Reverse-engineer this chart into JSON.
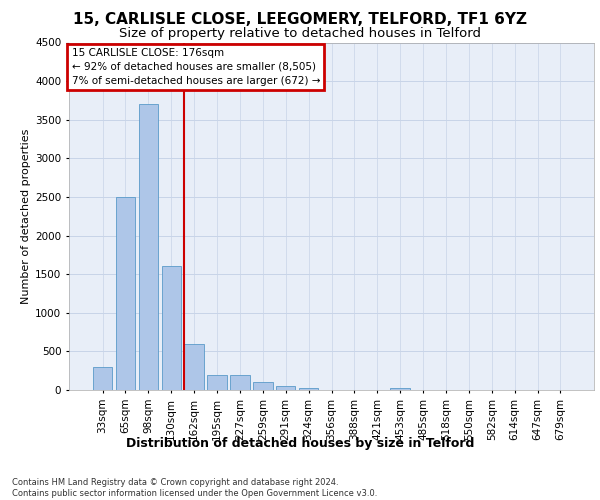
{
  "title1": "15, CARLISLE CLOSE, LEEGOMERY, TELFORD, TF1 6YZ",
  "title2": "Size of property relative to detached houses in Telford",
  "xlabel": "Distribution of detached houses by size in Telford",
  "ylabel": "Number of detached properties",
  "categories": [
    "33sqm",
    "65sqm",
    "98sqm",
    "130sqm",
    "162sqm",
    "195sqm",
    "227sqm",
    "259sqm",
    "291sqm",
    "324sqm",
    "356sqm",
    "388sqm",
    "421sqm",
    "453sqm",
    "485sqm",
    "518sqm",
    "550sqm",
    "582sqm",
    "614sqm",
    "647sqm",
    "679sqm"
  ],
  "values": [
    300,
    2500,
    3700,
    1600,
    600,
    200,
    200,
    100,
    50,
    20,
    5,
    0,
    0,
    30,
    0,
    0,
    0,
    0,
    0,
    0,
    0
  ],
  "bar_color": "#aec6e8",
  "bar_edge_color": "#5a9ac9",
  "grid_color": "#c8d4e8",
  "bg_color": "#e8eef8",
  "annotation_text": "15 CARLISLE CLOSE: 176sqm\n← 92% of detached houses are smaller (8,505)\n7% of semi-detached houses are larger (672) →",
  "annotation_box_color": "#cc0000",
  "vline_x": 3.55,
  "ylim": [
    0,
    4500
  ],
  "yticks": [
    0,
    500,
    1000,
    1500,
    2000,
    2500,
    3000,
    3500,
    4000,
    4500
  ],
  "footer": "Contains HM Land Registry data © Crown copyright and database right 2024.\nContains public sector information licensed under the Open Government Licence v3.0.",
  "title1_fontsize": 11,
  "title2_fontsize": 9.5,
  "xlabel_fontsize": 9,
  "ylabel_fontsize": 8,
  "tick_fontsize": 7.5,
  "ann_fontsize": 7.5,
  "footer_fontsize": 6
}
